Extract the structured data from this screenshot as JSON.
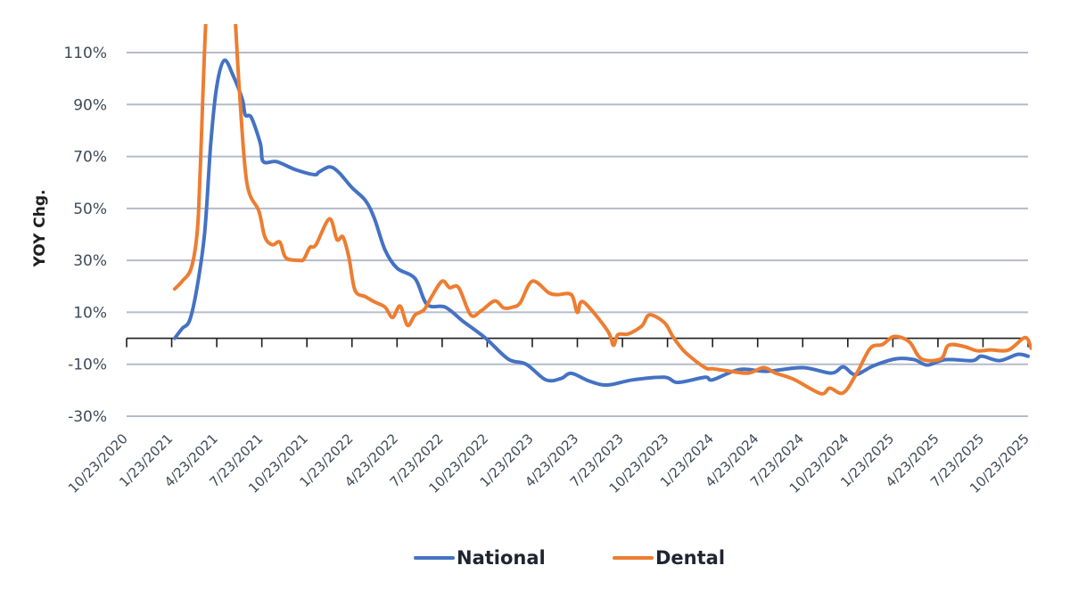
{
  "chart_data": {
    "type": "line",
    "title": "",
    "xlabel": "",
    "ylabel": "YOY Chg.",
    "ylim": [
      -30,
      120
    ],
    "y_ticks": [
      -30,
      -10,
      10,
      30,
      50,
      70,
      90,
      110
    ],
    "y_tick_labels": [
      "-30%",
      "-10%",
      "10%",
      "30%",
      "50%",
      "70%",
      "90%",
      "110%"
    ],
    "x_unit": "months since 10/23/2020",
    "xlim": [
      0,
      60
    ],
    "x_ticks": [
      0,
      3,
      6,
      9,
      12,
      15,
      18,
      21,
      24,
      27,
      30,
      33,
      36,
      39,
      42,
      45,
      48,
      51,
      54,
      57,
      60
    ],
    "x_tick_labels": [
      "10/23/2020",
      "1/23/2021",
      "4/23/2021",
      "7/23/2021",
      "10/23/2021",
      "1/23/2022",
      "4/23/2022",
      "7/23/2022",
      "10/23/2022",
      "1/23/2023",
      "4/23/2023",
      "7/23/2023",
      "10/23/2023",
      "1/23/2024",
      "4/23/2024",
      "7/23/2024",
      "10/23/2024",
      "1/23/2025",
      "4/23/2025",
      "7/23/2025",
      "10/23/2025"
    ],
    "grid": true,
    "legend_position": "bottom-center",
    "series": [
      {
        "name": "National",
        "color": "#4472c4",
        "points": [
          [
            3.2,
            0
          ],
          [
            3.7,
            3.8
          ],
          [
            4.2,
            7
          ],
          [
            4.7,
            20
          ],
          [
            5.2,
            41
          ],
          [
            5.6,
            75
          ],
          [
            6.0,
            97
          ],
          [
            6.5,
            107
          ],
          [
            7.1,
            101
          ],
          [
            7.7,
            92
          ],
          [
            7.9,
            86
          ],
          [
            8.3,
            85
          ],
          [
            8.9,
            75
          ],
          [
            9.1,
            68
          ],
          [
            10.0,
            68
          ],
          [
            11.2,
            65
          ],
          [
            12.5,
            63
          ],
          [
            12.8,
            64
          ],
          [
            13.5,
            66
          ],
          [
            14.1,
            64
          ],
          [
            15.0,
            58
          ],
          [
            15.9,
            53
          ],
          [
            16.5,
            46
          ],
          [
            17.2,
            34
          ],
          [
            18.0,
            27
          ],
          [
            19.2,
            23
          ],
          [
            20.0,
            13
          ],
          [
            21.2,
            12
          ],
          [
            22.4,
            6.5
          ],
          [
            23.9,
            0
          ],
          [
            25.4,
            -8
          ],
          [
            26.6,
            -10
          ],
          [
            27.9,
            -16
          ],
          [
            28.9,
            -15.5
          ],
          [
            29.6,
            -13.5
          ],
          [
            30.8,
            -16.5
          ],
          [
            32.0,
            -18
          ],
          [
            33.7,
            -16
          ],
          [
            35.8,
            -15
          ],
          [
            36.7,
            -17
          ],
          [
            38.5,
            -15
          ],
          [
            39.0,
            -16
          ],
          [
            40.8,
            -12
          ],
          [
            42.6,
            -12.7
          ],
          [
            45.0,
            -11.3
          ],
          [
            46.9,
            -13.4
          ],
          [
            47.7,
            -11
          ],
          [
            48.5,
            -14
          ],
          [
            49.7,
            -10.6
          ],
          [
            51.2,
            -7.9
          ],
          [
            52.4,
            -8.2
          ],
          [
            53.3,
            -10.3
          ],
          [
            54.5,
            -8.2
          ],
          [
            56.3,
            -8.6
          ],
          [
            56.9,
            -6.9
          ],
          [
            58.1,
            -8.6
          ],
          [
            59.3,
            -6.2
          ],
          [
            60.0,
            -6.9
          ]
        ]
      },
      {
        "name": "Dental",
        "color": "#ed7d31",
        "points": [
          [
            3.2,
            19
          ],
          [
            3.7,
            22
          ],
          [
            4.3,
            27
          ],
          [
            4.7,
            41
          ],
          [
            4.9,
            65
          ],
          [
            5.3,
            125
          ],
          [
            5.7,
            140
          ],
          [
            6.3,
            150
          ],
          [
            6.9,
            140
          ],
          [
            7.2,
            125
          ],
          [
            7.5,
            96
          ],
          [
            8.0,
            60
          ],
          [
            8.8,
            49
          ],
          [
            9.2,
            39
          ],
          [
            9.7,
            36
          ],
          [
            10.2,
            37
          ],
          [
            10.6,
            31
          ],
          [
            11.5,
            30
          ],
          [
            11.8,
            30.5
          ],
          [
            12.2,
            35
          ],
          [
            12.6,
            36
          ],
          [
            13.5,
            46
          ],
          [
            14.0,
            38
          ],
          [
            14.4,
            39
          ],
          [
            14.8,
            31
          ],
          [
            15.2,
            18.5
          ],
          [
            15.9,
            16
          ],
          [
            16.5,
            14
          ],
          [
            17.2,
            12
          ],
          [
            17.7,
            8
          ],
          [
            18.2,
            12.4
          ],
          [
            18.7,
            5
          ],
          [
            19.2,
            9
          ],
          [
            19.8,
            11
          ],
          [
            20.3,
            16
          ],
          [
            21.0,
            22
          ],
          [
            21.5,
            19.5
          ],
          [
            22.1,
            19.5
          ],
          [
            22.9,
            9
          ],
          [
            23.6,
            10.6
          ],
          [
            24.5,
            14.4
          ],
          [
            25.1,
            11.7
          ],
          [
            25.7,
            12
          ],
          [
            26.2,
            13.7
          ],
          [
            27.0,
            22
          ],
          [
            28.1,
            17.5
          ],
          [
            28.7,
            16.8
          ],
          [
            29.6,
            16.8
          ],
          [
            30.0,
            10
          ],
          [
            30.4,
            14
          ],
          [
            32.0,
            3
          ],
          [
            32.4,
            -2.7
          ],
          [
            32.7,
            1.4
          ],
          [
            33.4,
            1.7
          ],
          [
            34.3,
            4.8
          ],
          [
            34.8,
            9
          ],
          [
            35.8,
            6
          ],
          [
            36.4,
            0.3
          ],
          [
            37.2,
            -5.5
          ],
          [
            38.5,
            -11.3
          ],
          [
            39.0,
            -11.7
          ],
          [
            40.2,
            -12.7
          ],
          [
            41.4,
            -13.4
          ],
          [
            42.4,
            -11.3
          ],
          [
            43.2,
            -13.4
          ],
          [
            44.4,
            -15.8
          ],
          [
            46.2,
            -21.3
          ],
          [
            46.8,
            -19.2
          ],
          [
            47.7,
            -21
          ],
          [
            48.6,
            -13.4
          ],
          [
            49.5,
            -3.8
          ],
          [
            50.3,
            -2.4
          ],
          [
            51.1,
            0.7
          ],
          [
            52.1,
            -1.4
          ],
          [
            52.9,
            -7.9
          ],
          [
            54.2,
            -7.9
          ],
          [
            54.7,
            -2.7
          ],
          [
            55.7,
            -3.1
          ],
          [
            56.6,
            -4.8
          ],
          [
            57.5,
            -4.5
          ],
          [
            58.7,
            -4.5
          ],
          [
            59.8,
            0.3
          ],
          [
            60.2,
            -3.8
          ]
        ]
      }
    ],
    "legend": [
      {
        "label": "National",
        "color": "#4472c4"
      },
      {
        "label": "Dental",
        "color": "#ed7d31"
      }
    ]
  }
}
